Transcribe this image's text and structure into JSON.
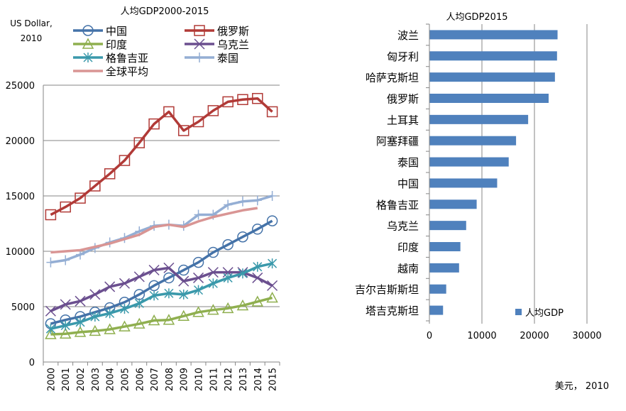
{
  "chart_data": [
    {
      "type": "line",
      "title": "人均GDP2000-2015",
      "ylabel": "US Dollar, 2010",
      "ylabel_lines": [
        "US Dollar,",
        "2010"
      ],
      "xlabel": "",
      "ylim": [
        0,
        25000
      ],
      "yticks": [
        "0",
        "5000",
        "10000",
        "15000",
        "20000",
        "25000"
      ],
      "x": [
        "2000",
        "2001",
        "2002",
        "2003",
        "2004",
        "2005",
        "2006",
        "2007",
        "2008",
        "2009",
        "2010",
        "2011",
        "2012",
        "2013",
        "2014",
        "2015"
      ],
      "grid": true,
      "legend_position": "top",
      "series": [
        {
          "name": "中国",
          "color": "#4472a8",
          "marker": "circle",
          "values": [
            3460,
            3800,
            4100,
            4500,
            4900,
            5400,
            6100,
            6900,
            7600,
            8300,
            9000,
            9900,
            10600,
            11300,
            12000,
            12750
          ]
        },
        {
          "name": "俄罗斯",
          "color": "#b13a37",
          "marker": "square",
          "values": [
            13300,
            14000,
            14800,
            15900,
            17000,
            18200,
            19800,
            21500,
            22600,
            20900,
            21700,
            22700,
            23500,
            23700,
            23800,
            22600
          ]
        },
        {
          "name": "印度",
          "color": "#8faf4f",
          "marker": "triangle",
          "values": [
            2500,
            2550,
            2700,
            2800,
            2950,
            3200,
            3450,
            3750,
            3800,
            4150,
            4500,
            4700,
            4850,
            5100,
            5450,
            5800
          ]
        },
        {
          "name": "乌克兰",
          "color": "#6b4f8f",
          "marker": "x",
          "values": [
            4600,
            5200,
            5500,
            6100,
            6800,
            7100,
            7700,
            8300,
            8500,
            7300,
            7600,
            8100,
            8100,
            8100,
            7600,
            6900
          ]
        },
        {
          "name": "格鲁吉亚",
          "color": "#3a99ab",
          "marker": "star",
          "values": [
            3000,
            3300,
            3600,
            4100,
            4400,
            4800,
            5300,
            6000,
            6200,
            6100,
            6500,
            7100,
            7600,
            8000,
            8600,
            8900
          ]
        },
        {
          "name": "泰国",
          "color": "#94aed4",
          "marker": "plus",
          "values": [
            9000,
            9200,
            9700,
            10300,
            10800,
            11200,
            11800,
            12300,
            12400,
            12300,
            13300,
            13300,
            14200,
            14500,
            14600,
            15000
          ]
        },
        {
          "name": "全球平均",
          "color": "#d99594",
          "marker": "none",
          "values": [
            9900,
            10000,
            10100,
            10400,
            10700,
            11100,
            11500,
            12200,
            12400,
            12200,
            12700,
            13100,
            13400,
            13700,
            13900,
            null
          ]
        }
      ]
    },
    {
      "type": "bar",
      "orientation": "horizontal",
      "title": "人均GDP2015",
      "xlabel": "美元， 2010",
      "xlim": [
        0,
        30000
      ],
      "xticks": [
        "0",
        "10000",
        "20000",
        "30000"
      ],
      "grid": true,
      "legend_position": "bottom-right",
      "series_name": "人均GDP",
      "color": "#4f81bd",
      "categories": [
        "波兰",
        "匈牙利",
        "哈萨克斯坦",
        "俄罗斯",
        "土耳其",
        "阿塞拜疆",
        "泰国",
        "中国",
        "格鲁吉亚",
        "乌克兰",
        "印度",
        "越南",
        "吉尔吉斯斯坦",
        "塔吉克斯坦"
      ],
      "values": [
        24400,
        24300,
        23900,
        22700,
        18800,
        16500,
        15100,
        12900,
        9000,
        7000,
        5900,
        5650,
        3200,
        2600
      ]
    }
  ]
}
